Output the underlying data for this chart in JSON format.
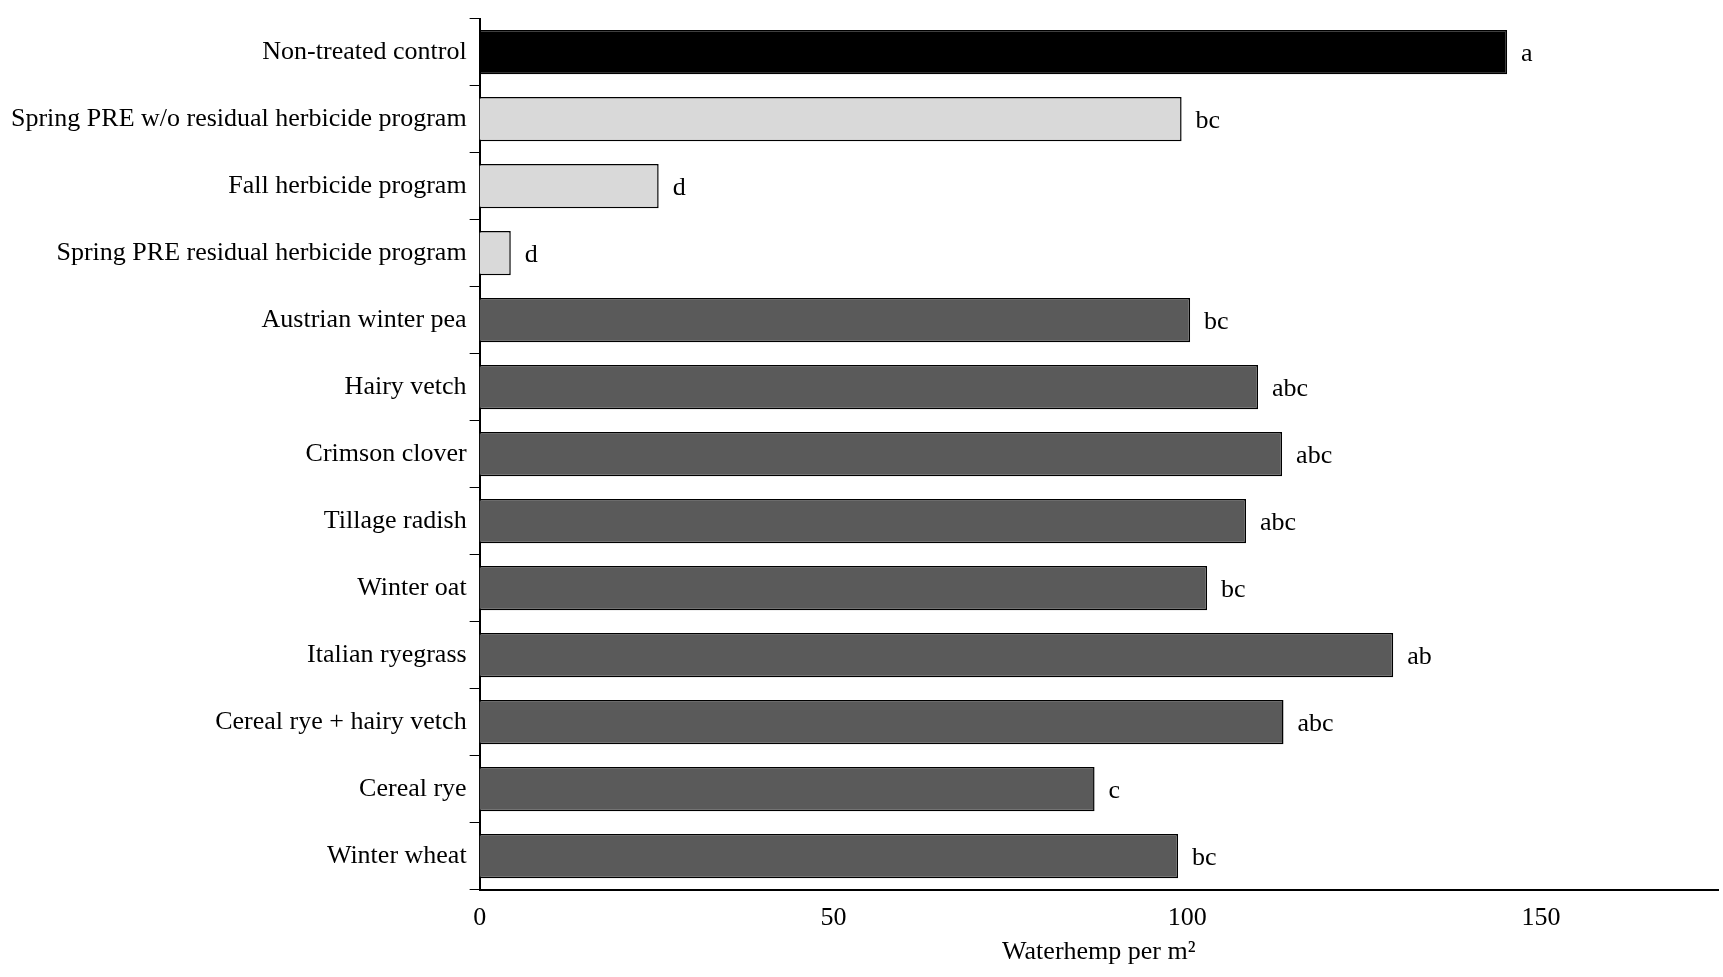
{
  "chart_data": {
    "type": "bar",
    "orientation": "horizontal",
    "categories": [
      "Non-treated control",
      "Spring PRE w/o residual herbicide program",
      "Fall herbicide program",
      "Spring PRE residual herbicide program",
      "Austrian winter pea",
      "Hairy vetch",
      "Crimson clover",
      "Tillage radish",
      "Winter oat",
      "Italian ryegrass",
      "Cereal rye + hairy vetch",
      "Cereal rye",
      "Winter wheat"
    ],
    "values": [
      145.2,
      99.2,
      25.3,
      4.4,
      100.4,
      110.0,
      113.4,
      108.3,
      102.8,
      129.1,
      113.6,
      86.9,
      98.7
    ],
    "colors": [
      "#000000",
      "#d9d9d9",
      "#d9d9d9",
      "#d9d9d9",
      "#5a5a5a",
      "#5a5a5a",
      "#5a5a5a",
      "#5a5a5a",
      "#5a5a5a",
      "#5a5a5a",
      "#5a5a5a",
      "#5a5a5a",
      "#5a5a5a"
    ],
    "value_labels": [
      "a",
      "bc",
      "d",
      "d",
      "bc",
      "abc",
      "abc",
      "abc",
      "bc",
      "ab",
      "abc",
      "c",
      "bc"
    ],
    "xlabel": "Waterhemp per m²",
    "xlim": [
      0,
      175
    ],
    "xticks": [
      0,
      50,
      100,
      150
    ],
    "grid": false,
    "legend": false
  }
}
